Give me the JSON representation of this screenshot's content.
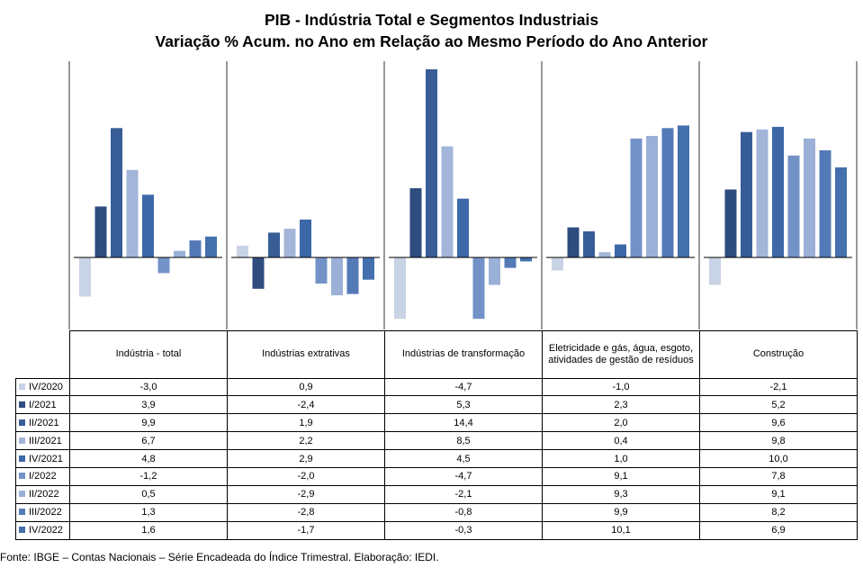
{
  "chart_data": {
    "type": "bar",
    "title": "PIB - Indústria Total e Segmentos Industriais",
    "subtitle": "Variação % Acum. no Ano em Relação ao Mesmo Período do Ano Anterior",
    "categories": [
      "Indústria - total",
      "Indústrias extrativas",
      "Indústrias de transformação",
      "Eletricidade e gás, água, esgoto, atividades de gestão de resíduos",
      "Construção"
    ],
    "series": [
      {
        "name": "IV/2020",
        "color": "#c9d3e6",
        "values": [
          -3.0,
          0.9,
          -4.7,
          -1.0,
          -2.1
        ],
        "labels": [
          "-3,0",
          "0,9",
          "-4,7",
          "-1,0",
          "-2,1"
        ]
      },
      {
        "name": "I/2021",
        "color": "#2e4c7e",
        "values": [
          3.9,
          -2.4,
          5.3,
          2.3,
          5.2
        ],
        "labels": [
          "3,9",
          "-2,4",
          "5,3",
          "2,3",
          "5,2"
        ]
      },
      {
        "name": "II/2021",
        "color": "#385d96",
        "values": [
          9.9,
          1.9,
          14.4,
          2.0,
          9.6
        ],
        "labels": [
          "9,9",
          "1,9",
          "14,4",
          "2,0",
          "9,6"
        ]
      },
      {
        "name": "III/2021",
        "color": "#a3b5d9",
        "values": [
          6.7,
          2.2,
          8.5,
          0.4,
          9.8
        ],
        "labels": [
          "6,7",
          "2,2",
          "8,5",
          "0,4",
          "9,8"
        ]
      },
      {
        "name": "IV/2021",
        "color": "#3d68a8",
        "values": [
          4.8,
          2.9,
          4.5,
          1.0,
          10.0
        ],
        "labels": [
          "4,8",
          "2,9",
          "4,5",
          "1,0",
          "10,0"
        ]
      },
      {
        "name": "I/2022",
        "color": "#7393c8",
        "values": [
          -1.2,
          -2.0,
          -4.7,
          9.1,
          7.8
        ],
        "labels": [
          "-1,2",
          "-2,0",
          "-4,7",
          "9,1",
          "7,8"
        ]
      },
      {
        "name": "II/2022",
        "color": "#9bb0d7",
        "values": [
          0.5,
          -2.9,
          -2.1,
          9.3,
          9.1
        ],
        "labels": [
          "0,5",
          "-2,9",
          "-2,1",
          "9,3",
          "9,1"
        ]
      },
      {
        "name": "III/2022",
        "color": "#5479b7",
        "values": [
          1.3,
          -2.8,
          -0.8,
          9.9,
          8.2
        ],
        "labels": [
          "1,3",
          "-2,8",
          "-0,8",
          "9,9",
          "8,2"
        ]
      },
      {
        "name": "IV/2022",
        "color": "#4470ad",
        "values": [
          1.6,
          -1.7,
          -0.3,
          10.1,
          6.9
        ],
        "labels": [
          "1,6",
          "-1,7",
          "-0,3",
          "10,1",
          "6,9"
        ]
      }
    ],
    "ylim": [
      -5,
      15
    ],
    "grid": false,
    "legend": "table-left"
  },
  "source": "Fonte: IBGE – Contas Nacionais – Série Encadeada do Índice Trimestral. Elaboração: IEDI."
}
